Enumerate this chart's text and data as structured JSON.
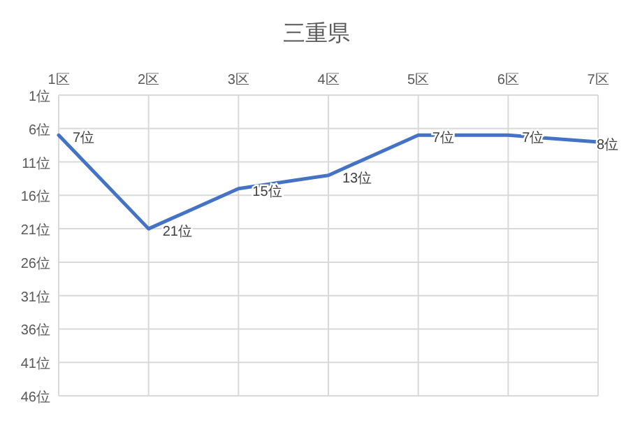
{
  "chart_data": {
    "type": "line",
    "title": "三重県",
    "categories": [
      "1区",
      "2区",
      "3区",
      "4区",
      "5区",
      "6区",
      "7区"
    ],
    "series": [
      {
        "color": "#4472c4",
        "values": [
          7,
          21,
          15,
          13,
          7,
          7,
          8
        ],
        "value_labels": [
          "7位",
          "21位",
          "15位",
          "13位",
          "7位",
          "7位",
          "8位"
        ]
      }
    ],
    "ylim": [
      46,
      1
    ],
    "yticks": [
      {
        "value": 1,
        "label": "1位"
      },
      {
        "value": 6,
        "label": "6位"
      },
      {
        "value": 11,
        "label": "11位"
      },
      {
        "value": 16,
        "label": "16位"
      },
      {
        "value": 21,
        "label": "21位"
      },
      {
        "value": 26,
        "label": "26位"
      },
      {
        "value": 31,
        "label": "31位"
      },
      {
        "value": 36,
        "label": "36位"
      },
      {
        "value": 41,
        "label": "41位"
      },
      {
        "value": 46,
        "label": "46位"
      }
    ],
    "grid": true,
    "marker": "none",
    "line_style": "solid"
  }
}
